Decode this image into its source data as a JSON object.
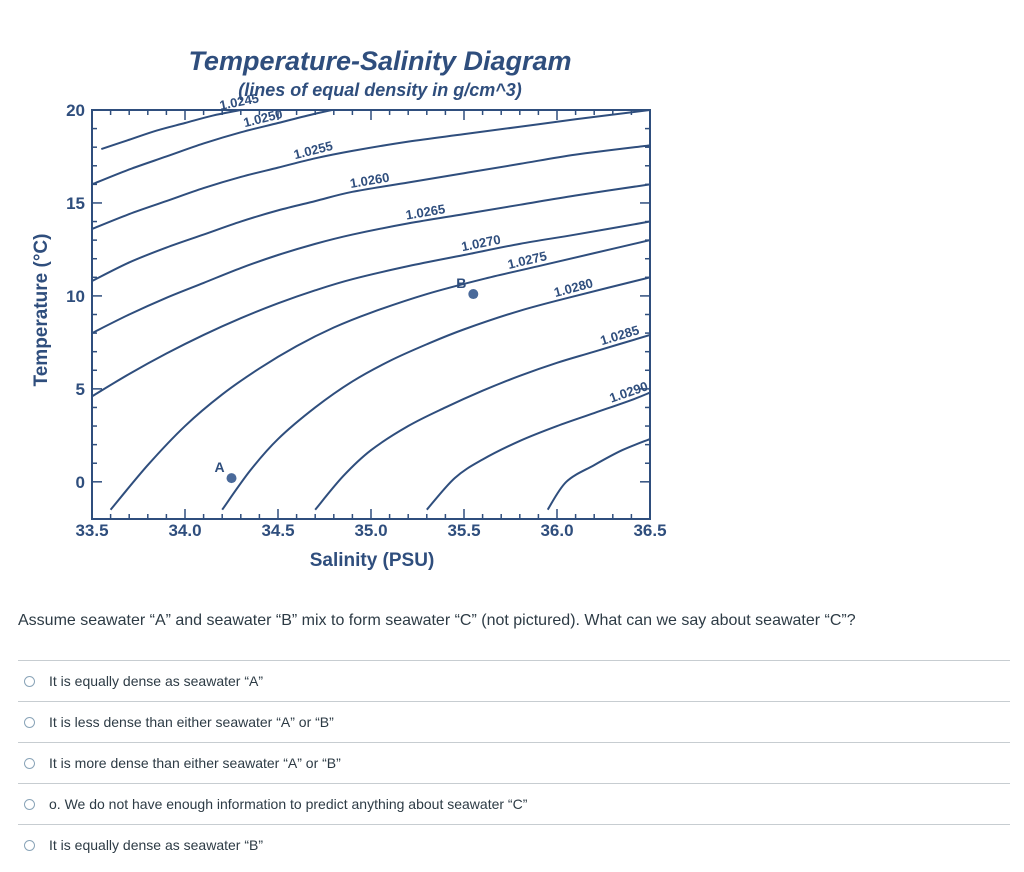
{
  "chart_data": {
    "type": "line",
    "title": "Temperature-Salinity Diagram",
    "subtitle": "(lines of equal density in g/cm^3)",
    "xlabel": "Salinity (PSU)",
    "ylabel": "Temperature (°C)",
    "xlim": [
      33.5,
      36.5
    ],
    "ylim": [
      -2,
      20
    ],
    "xticks": [
      "33.5",
      "34.0",
      "34.5",
      "35.0",
      "35.5",
      "36.0",
      "36.5"
    ],
    "yticks": [
      "0",
      "5",
      "10",
      "15",
      "20"
    ],
    "colors": {
      "ink": "#2f4e7d",
      "point": "#4a6a9a"
    },
    "series": [
      {
        "name": "1.0245",
        "x": [
          33.55,
          33.7,
          33.85,
          34.0,
          34.15,
          34.3,
          34.5,
          34.7,
          34.9,
          35.1,
          35.35
        ],
        "y": [
          17.9,
          18.4,
          18.9,
          19.3,
          19.7,
          20.0,
          20.4,
          20.7,
          21.0,
          21.3,
          21.6
        ]
      },
      {
        "name": "1.0250",
        "x": [
          33.5,
          33.7,
          33.9,
          34.1,
          34.3,
          34.5,
          34.7,
          34.9,
          35.2,
          35.5,
          35.8,
          36.1,
          36.5
        ],
        "y": [
          16.0,
          16.8,
          17.5,
          18.2,
          18.8,
          19.3,
          19.8,
          20.2,
          20.6,
          21.0,
          21.4,
          21.8,
          22.2
        ]
      },
      {
        "name": "1.0255",
        "x": [
          33.5,
          33.7,
          33.9,
          34.1,
          34.3,
          34.5,
          34.7,
          34.9,
          35.2,
          35.5,
          35.8,
          36.1,
          36.5
        ],
        "y": [
          13.6,
          14.4,
          15.1,
          15.8,
          16.4,
          16.9,
          17.4,
          17.8,
          18.3,
          18.7,
          19.1,
          19.5,
          20.0
        ]
      },
      {
        "name": "1.0260",
        "x": [
          33.5,
          33.7,
          33.9,
          34.1,
          34.3,
          34.5,
          34.7,
          34.9,
          35.2,
          35.5,
          35.8,
          36.1,
          36.5
        ],
        "y": [
          10.8,
          11.8,
          12.6,
          13.3,
          14.0,
          14.6,
          15.1,
          15.6,
          16.1,
          16.6,
          17.1,
          17.6,
          18.1
        ]
      },
      {
        "name": "1.0265",
        "x": [
          33.5,
          33.7,
          33.9,
          34.1,
          34.3,
          34.5,
          34.7,
          34.9,
          35.2,
          35.5,
          35.8,
          36.1,
          36.5
        ],
        "y": [
          8.0,
          9.0,
          9.9,
          10.7,
          11.5,
          12.2,
          12.8,
          13.3,
          13.9,
          14.4,
          14.9,
          15.4,
          16.0
        ]
      },
      {
        "name": "1.0270",
        "x": [
          33.5,
          33.7,
          33.9,
          34.1,
          34.3,
          34.5,
          34.7,
          34.9,
          35.2,
          35.5,
          35.8,
          36.1,
          36.5
        ],
        "y": [
          4.6,
          5.8,
          6.9,
          7.9,
          8.8,
          9.6,
          10.3,
          10.9,
          11.6,
          12.2,
          12.8,
          13.3,
          14.0
        ]
      },
      {
        "name": "1.0275",
        "x": [
          33.6,
          33.8,
          34.0,
          34.2,
          34.4,
          34.6,
          34.8,
          35.0,
          35.3,
          35.6,
          35.9,
          36.2,
          36.5
        ],
        "y": [
          -1.5,
          0.9,
          3.0,
          4.7,
          6.1,
          7.3,
          8.3,
          9.1,
          10.1,
          10.9,
          11.6,
          12.3,
          13.0
        ]
      },
      {
        "name": "1.0280",
        "x": [
          34.2,
          34.35,
          34.5,
          34.7,
          34.9,
          35.1,
          35.3,
          35.5,
          35.8,
          36.1,
          36.5
        ],
        "y": [
          -1.5,
          0.6,
          2.3,
          4.0,
          5.4,
          6.5,
          7.4,
          8.2,
          9.2,
          10.0,
          11.0
        ]
      },
      {
        "name": "1.0285",
        "x": [
          34.7,
          34.85,
          35.0,
          35.2,
          35.4,
          35.6,
          35.8,
          36.0,
          36.2,
          36.5
        ],
        "y": [
          -1.5,
          0.3,
          1.7,
          3.0,
          4.0,
          4.9,
          5.7,
          6.4,
          7.0,
          7.9
        ]
      },
      {
        "name": "1.0290",
        "x": [
          35.3,
          35.45,
          35.6,
          35.8,
          36.0,
          36.2,
          36.4,
          36.5
        ],
        "y": [
          -1.5,
          0.2,
          1.2,
          2.2,
          3.0,
          3.7,
          4.4,
          4.8
        ]
      },
      {
        "name": "",
        "x": [
          35.95,
          36.05,
          36.2,
          36.35,
          36.5
        ],
        "y": [
          -1.5,
          0.0,
          0.9,
          1.7,
          2.3
        ]
      }
    ],
    "points": [
      {
        "label": "A",
        "x": 34.25,
        "y": 0.2
      },
      {
        "label": "B",
        "x": 35.55,
        "y": 10.1
      }
    ]
  },
  "question": {
    "text": "Assume seawater “A” and seawater “B” mix to form seawater “C” (not pictured). What can we say about seawater “C”?",
    "answers": [
      "It is equally dense as seawater “A”",
      "It is less dense than either seawater “A” or “B”",
      "It is more dense than either seawater “A” or “B”",
      "o. We do not have enough information to predict anything about seawater “C”",
      "It is equally dense as seawater “B”"
    ]
  }
}
